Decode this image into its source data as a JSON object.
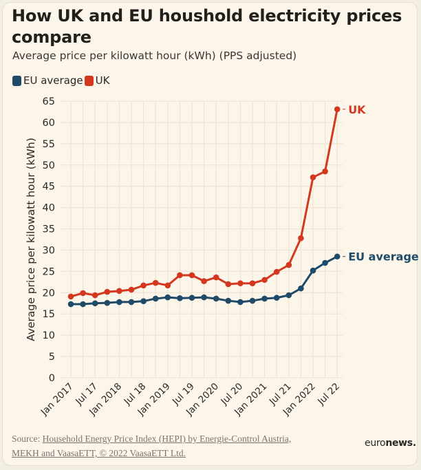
{
  "chart_data": {
    "type": "line",
    "title": "How UK and EU houshold electricity prices compare",
    "subtitle": "Average price per kilowatt hour (kWh) (PPS adjusted)",
    "xlabel": "",
    "ylabel": "Average price per kilowatt hour (kWh)",
    "ylim": [
      0,
      65
    ],
    "yticks": [
      0,
      5,
      10,
      15,
      20,
      25,
      30,
      35,
      40,
      45,
      50,
      55,
      60,
      65
    ],
    "grid": true,
    "legend_position": "top-left",
    "x": [
      "Jan 2017",
      "Apr 2017",
      "Jul 2017",
      "Oct 2017",
      "Jan 2018",
      "Apr 2018",
      "Jul 2018",
      "Oct 2018",
      "Jan 2019",
      "Apr 2019",
      "Jul 2019",
      "Oct 2019",
      "Jan 2020",
      "Apr 2020",
      "Jul 2020",
      "Oct 2020",
      "Jan 2021",
      "Apr 2021",
      "Jul 2021",
      "Oct 2021",
      "Jan 2022",
      "Apr 2022",
      "Jul 2022"
    ],
    "xtick_labels": [
      "Jan 2017",
      "Jul 17",
      "Jan 2018",
      "Jul 18",
      "Jan 2019",
      "Jul 19",
      "Jan 2020",
      "Jul 20",
      "Jan 2021",
      "Jul 21",
      "Jan 2022",
      "Jul 22"
    ],
    "series": [
      {
        "name": "EU average",
        "color": "#1f4a68",
        "end_label": "EU average",
        "values": [
          17.3,
          17.3,
          17.5,
          17.6,
          17.8,
          17.8,
          18.0,
          18.6,
          18.9,
          18.7,
          18.8,
          18.9,
          18.6,
          18.1,
          17.8,
          18.1,
          18.6,
          18.8,
          19.4,
          21.0,
          25.2,
          27.0,
          28.5
        ]
      },
      {
        "name": "UK",
        "color": "#d4371f",
        "end_label": "UK",
        "values": [
          19.1,
          19.9,
          19.4,
          20.2,
          20.4,
          20.7,
          21.7,
          22.3,
          21.7,
          24.1,
          24.1,
          22.7,
          23.6,
          22.0,
          22.2,
          22.2,
          23.0,
          24.9,
          26.5,
          32.8,
          47.1,
          48.5,
          63.1
        ]
      }
    ]
  },
  "legend": {
    "items": [
      {
        "label": "EU average",
        "color": "#1f4a68"
      },
      {
        "label": "UK",
        "color": "#d4371f"
      }
    ]
  },
  "footer": {
    "source_prefix": "Source: ",
    "source_link_line1": "Household Energy Price Index (HEPI) by Energie-Control Austria,",
    "source_link_line2": "MEKH and VaasaETT, © 2022 VaasaETT Ltd.",
    "brand_light": "euro",
    "brand_bold": "news."
  }
}
